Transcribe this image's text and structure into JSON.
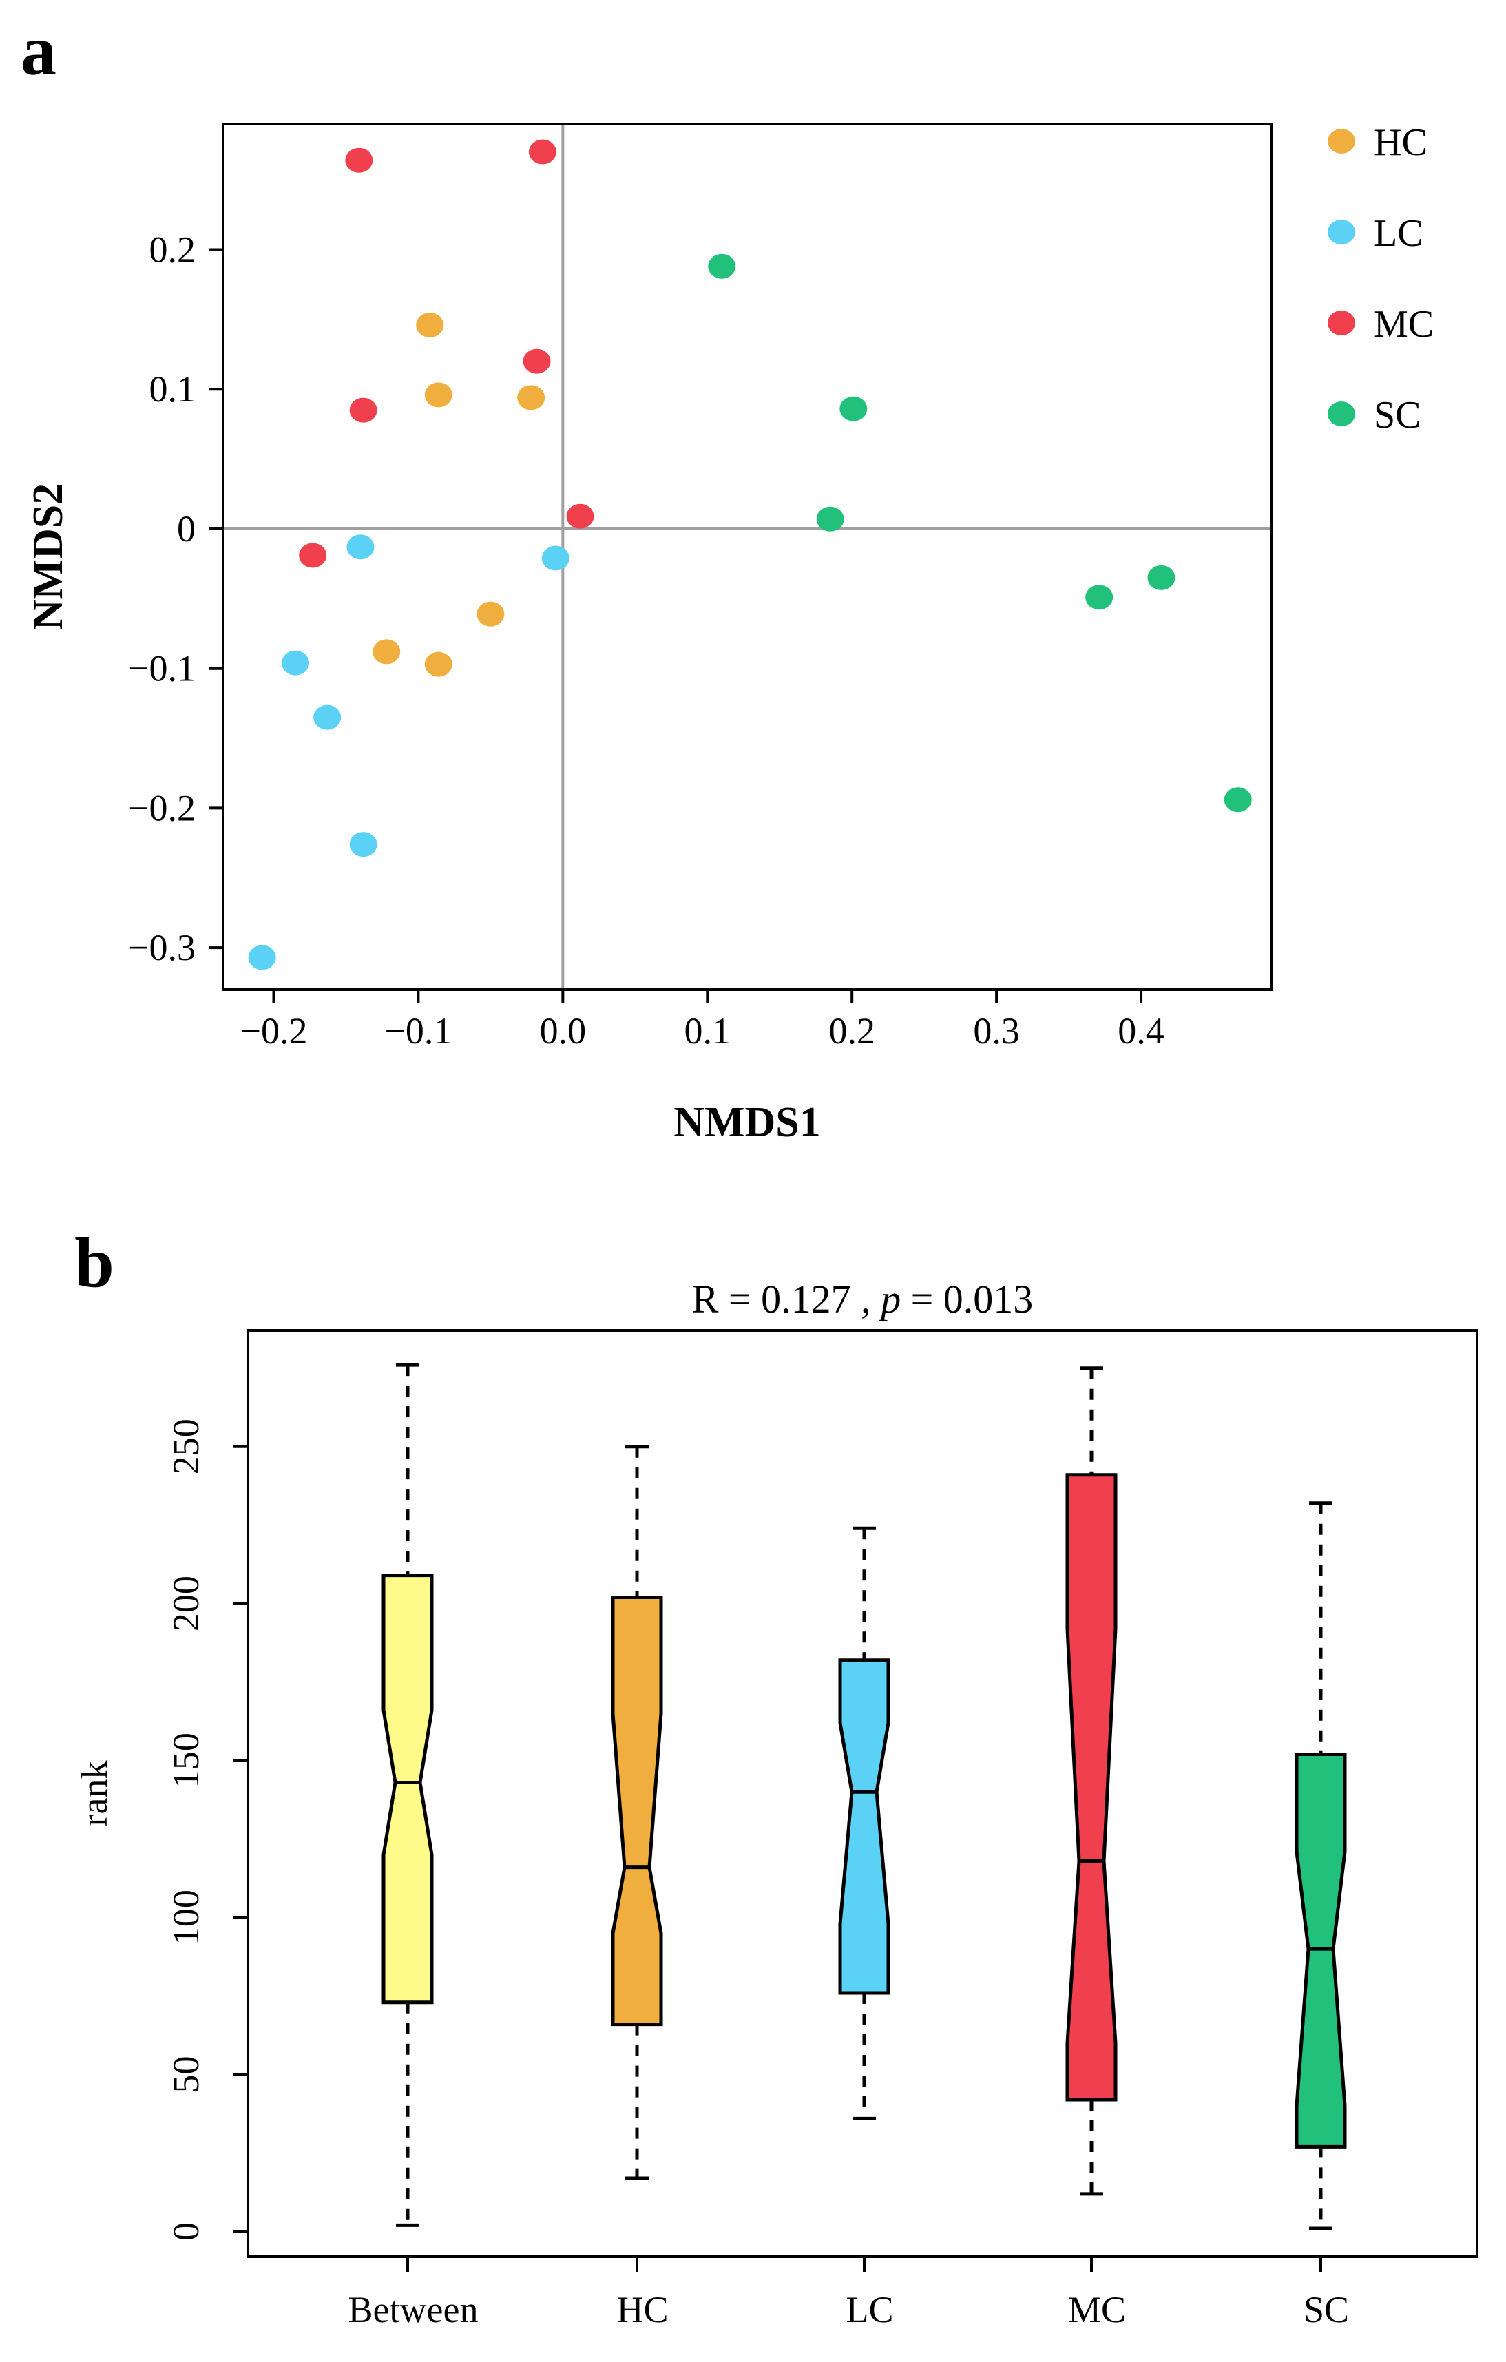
{
  "chart_data": [
    {
      "panel": "a",
      "type": "scatter",
      "xlabel": "NMDS1",
      "ylabel": "NMDS2",
      "xlim": [
        -0.235,
        0.49
      ],
      "ylim": [
        -0.33,
        0.29
      ],
      "xticks": [
        {
          "value": -0.2,
          "label": "−0.2"
        },
        {
          "value": -0.1,
          "label": "−0.1"
        },
        {
          "value": 0.0,
          "label": "0.0"
        },
        {
          "value": 0.1,
          "label": "0.1"
        },
        {
          "value": 0.2,
          "label": "0.2"
        },
        {
          "value": 0.3,
          "label": "0.3"
        },
        {
          "value": 0.4,
          "label": "0.4"
        }
      ],
      "yticks": [
        {
          "value": 0.2,
          "label": "0.2"
        },
        {
          "value": 0.1,
          "label": "0.1"
        },
        {
          "value": 0.0,
          "label": "0"
        },
        {
          "value": -0.1,
          "label": "−0.1"
        },
        {
          "value": -0.2,
          "label": "−0.2"
        },
        {
          "value": -0.3,
          "label": "−0.3"
        }
      ],
      "reference_lines": {
        "x": 0,
        "y": 0
      },
      "grid": false,
      "legend_position": "right",
      "series": [
        {
          "name": "HC",
          "color": "#F0AE3E",
          "points": [
            [
              -0.092,
              0.146
            ],
            [
              -0.086,
              0.096
            ],
            [
              -0.022,
              0.094
            ],
            [
              -0.05,
              -0.061
            ],
            [
              -0.122,
              -0.088
            ],
            [
              -0.086,
              -0.097
            ]
          ]
        },
        {
          "name": "LC",
          "color": "#5BD1F5",
          "points": [
            [
              -0.14,
              -0.013
            ],
            [
              -0.005,
              -0.021
            ],
            [
              -0.185,
              -0.096
            ],
            [
              -0.163,
              -0.135
            ],
            [
              -0.138,
              -0.226
            ],
            [
              -0.208,
              -0.307
            ]
          ]
        },
        {
          "name": "MC",
          "color": "#F0404D",
          "points": [
            [
              -0.141,
              0.264
            ],
            [
              -0.014,
              0.27
            ],
            [
              -0.018,
              0.12
            ],
            [
              -0.138,
              0.085
            ],
            [
              0.012,
              0.009
            ],
            [
              -0.173,
              -0.019
            ]
          ]
        },
        {
          "name": "SC",
          "color": "#21C17C",
          "points": [
            [
              0.11,
              0.188
            ],
            [
              0.201,
              0.086
            ],
            [
              0.185,
              0.007
            ],
            [
              0.371,
              -0.049
            ],
            [
              0.414,
              -0.035
            ],
            [
              0.467,
              -0.194
            ]
          ]
        }
      ]
    },
    {
      "panel": "b",
      "type": "box",
      "title_text": "R = 0.127 , ",
      "title_p": "p",
      "title_value": " = 0.013",
      "ylabel": "rank",
      "ylim": [
        -8,
        287
      ],
      "yticks": [
        0,
        50,
        100,
        150,
        200,
        250
      ],
      "categories": [
        "Between",
        "HC",
        "LC",
        "MC",
        "SC"
      ],
      "boxes": [
        {
          "name": "Between",
          "color": "#FFFB8A",
          "whisker_low": 2,
          "q1": 73,
          "notch_low": 120,
          "median": 143,
          "notch_high": 166,
          "q3": 209,
          "whisker_high": 276
        },
        {
          "name": "HC",
          "color": "#F0AE3E",
          "whisker_low": 17,
          "q1": 66,
          "notch_low": 95,
          "median": 116,
          "notch_high": 165,
          "q3": 202,
          "whisker_high": 250
        },
        {
          "name": "LC",
          "color": "#5BD1F5",
          "whisker_low": 36,
          "q1": 76,
          "notch_low": 98,
          "median": 140,
          "notch_high": 162,
          "q3": 182,
          "whisker_high": 224
        },
        {
          "name": "MC",
          "color": "#F0404D",
          "whisker_low": 12,
          "q1": 42,
          "notch_low": 60,
          "median": 118,
          "notch_high": 192,
          "q3": 241,
          "whisker_high": 275
        },
        {
          "name": "SC",
          "color": "#21C17C",
          "whisker_low": 1,
          "q1": 27,
          "notch_low": 40,
          "median": 90,
          "notch_high": 121,
          "q3": 152,
          "whisker_high": 232
        }
      ]
    }
  ]
}
